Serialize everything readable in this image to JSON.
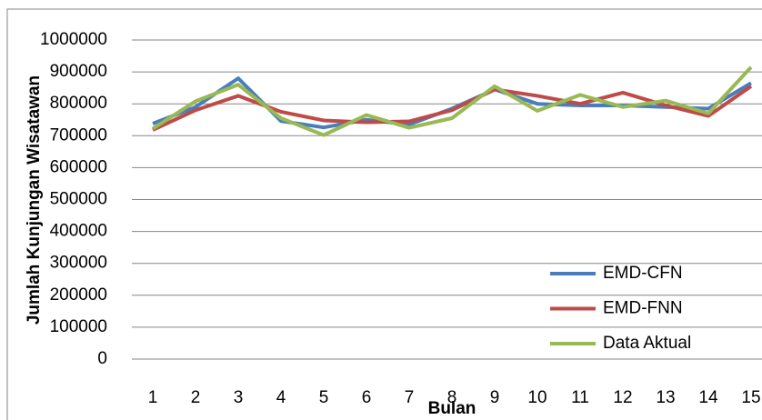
{
  "chart_data": {
    "type": "line",
    "x_label": "Bulan",
    "y_label": "Jumlah Kunjungan Wisatawan",
    "categories": [
      "1",
      "2",
      "3",
      "4",
      "5",
      "6",
      "7",
      "8",
      "9",
      "10",
      "11",
      "12",
      "13",
      "14",
      "15"
    ],
    "series": [
      {
        "name": "EMD-CFN",
        "color": "#4a7ebb",
        "values": [
          738000,
          790000,
          880000,
          746000,
          726000,
          750000,
          735000,
          785000,
          845000,
          800000,
          795000,
          795000,
          790000,
          785000,
          865000
        ]
      },
      {
        "name": "EMD-FNN",
        "color": "#be4b48",
        "values": [
          718000,
          780000,
          825000,
          775000,
          748000,
          742000,
          745000,
          780000,
          845000,
          825000,
          800000,
          835000,
          795000,
          762000,
          855000
        ]
      },
      {
        "name": "Data Aktual",
        "color": "#98b954",
        "values": [
          722000,
          808000,
          860000,
          755000,
          702000,
          765000,
          725000,
          755000,
          855000,
          778000,
          828000,
          790000,
          810000,
          770000,
          915000
        ]
      }
    ],
    "ylim": [
      0,
      1000000
    ],
    "yticks": [
      0,
      100000,
      200000,
      300000,
      400000,
      500000,
      600000,
      700000,
      800000,
      900000,
      1000000
    ],
    "grid": true,
    "legend": "lower right"
  }
}
